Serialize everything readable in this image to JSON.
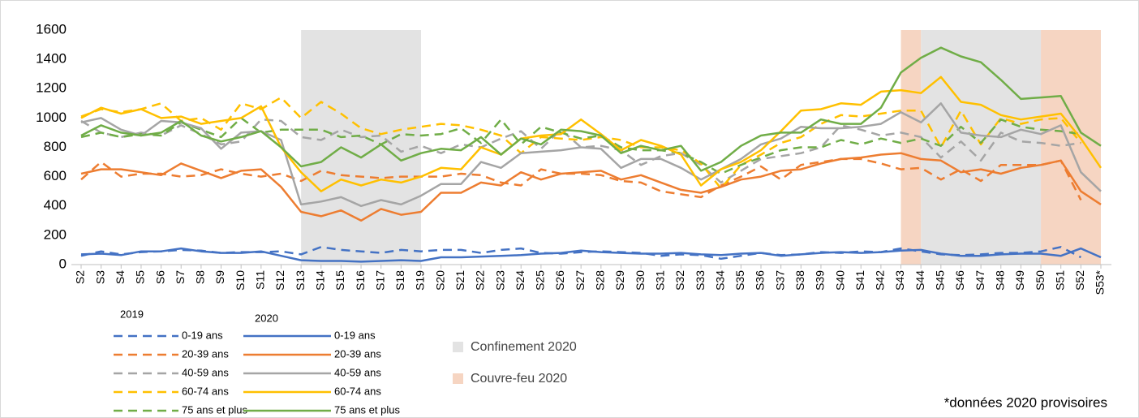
{
  "chart_data": {
    "type": "line",
    "categories": [
      "S2",
      "S3",
      "S4",
      "S5",
      "S6",
      "S7",
      "S8",
      "S9",
      "S10",
      "S11",
      "S12",
      "S13",
      "S14",
      "S15",
      "S16",
      "S17",
      "S18",
      "S19",
      "S20",
      "S21",
      "S22",
      "S23",
      "S24",
      "S25",
      "S26",
      "S27",
      "S28",
      "S29",
      "S30",
      "S31",
      "S32",
      "S33",
      "S34",
      "S35",
      "S36",
      "S37",
      "S38",
      "S39",
      "S40",
      "S41",
      "S42",
      "S43",
      "S44",
      "S45",
      "S46",
      "S47",
      "S48",
      "S49",
      "S50",
      "S51",
      "S52",
      "S53*"
    ],
    "ylim": [
      0,
      1600
    ],
    "yticks": [
      0,
      200,
      400,
      600,
      800,
      1000,
      1200,
      1400,
      1600
    ],
    "groups": [
      {
        "title": "2019",
        "dashed": true,
        "series": [
          {
            "name": "0-19 ans",
            "color": "#4472c4",
            "values": [
              60,
              90,
              70,
              85,
              90,
              100,
              95,
              80,
              85,
              85,
              90,
              70,
              120,
              100,
              90,
              80,
              100,
              90,
              100,
              100,
              80,
              100,
              110,
              80,
              75,
              85,
              90,
              85,
              80,
              60,
              70,
              65,
              40,
              60,
              80,
              65,
              70,
              85,
              80,
              90,
              85,
              110,
              90,
              70,
              65,
              70,
              80,
              80,
              90,
              120,
              50,
              null
            ]
          },
          {
            "name": "20-39 ans",
            "color": "#ed7d31",
            "values": [
              580,
              700,
              600,
              620,
              620,
              600,
              610,
              650,
              620,
              600,
              620,
              570,
              640,
              610,
              600,
              590,
              600,
              600,
              600,
              620,
              610,
              560,
              540,
              650,
              620,
              620,
              610,
              570,
              560,
              500,
              480,
              460,
              540,
              600,
              670,
              580,
              680,
              700,
              720,
              720,
              690,
              650,
              660,
              580,
              650,
              570,
              680,
              680,
              680,
              710,
              440,
              null
            ]
          },
          {
            "name": "40-59 ans",
            "color": "#a5a5a5",
            "values": [
              980,
              900,
              870,
              900,
              880,
              950,
              890,
              820,
              840,
              990,
              980,
              870,
              850,
              920,
              870,
              880,
              770,
              810,
              760,
              820,
              800,
              860,
              910,
              790,
              920,
              800,
              810,
              780,
              680,
              740,
              760,
              680,
              560,
              640,
              720,
              740,
              760,
              800,
              950,
              920,
              880,
              900,
              870,
              730,
              840,
              710,
              900,
              840,
              830,
              810,
              830,
              null
            ]
          },
          {
            "name": "60-74 ans",
            "color": "#ffc000",
            "values": [
              1010,
              1060,
              1040,
              1060,
              1100,
              980,
              1000,
              920,
              1100,
              1060,
              1140,
              1000,
              1110,
              1030,
              930,
              890,
              920,
              940,
              960,
              950,
              920,
              880,
              760,
              870,
              860,
              850,
              870,
              850,
              800,
              800,
              780,
              690,
              520,
              680,
              750,
              830,
              870,
              960,
              1020,
              1010,
              1030,
              1050,
              1050,
              800,
              1050,
              820,
              1000,
              960,
              990,
              1000,
              830,
              null
            ]
          },
          {
            "name": "75 ans et plus",
            "color": "#70ad47",
            "values": [
              870,
              900,
              870,
              890,
              880,
              970,
              920,
              870,
              1000,
              900,
              920,
              920,
              920,
              870,
              880,
              820,
              890,
              880,
              890,
              930,
              830,
              990,
              820,
              940,
              900,
              860,
              880,
              800,
              780,
              780,
              760,
              700,
              620,
              680,
              730,
              780,
              800,
              800,
              850,
              820,
              860,
              830,
              860,
              810,
              940,
              830,
              990,
              940,
              920,
              910,
              890,
              null
            ]
          }
        ]
      },
      {
        "title": "2020",
        "dashed": false,
        "series": [
          {
            "name": "0-19 ans",
            "color": "#4472c4",
            "values": [
              70,
              75,
              65,
              90,
              90,
              110,
              90,
              80,
              80,
              90,
              60,
              30,
              25,
              25,
              20,
              25,
              30,
              25,
              50,
              50,
              55,
              60,
              65,
              75,
              80,
              95,
              85,
              80,
              75,
              75,
              80,
              70,
              65,
              75,
              80,
              60,
              70,
              80,
              85,
              80,
              85,
              95,
              100,
              75,
              60,
              60,
              70,
              75,
              75,
              60,
              110,
              50
            ]
          },
          {
            "name": "20-39 ans",
            "color": "#ed7d31",
            "values": [
              620,
              650,
              650,
              630,
              610,
              690,
              640,
              590,
              640,
              650,
              530,
              360,
              330,
              370,
              300,
              380,
              340,
              360,
              490,
              490,
              560,
              540,
              630,
              580,
              620,
              630,
              640,
              580,
              610,
              560,
              510,
              490,
              530,
              580,
              600,
              640,
              650,
              690,
              720,
              730,
              750,
              760,
              720,
              710,
              630,
              650,
              620,
              660,
              680,
              710,
              500,
              410
            ]
          },
          {
            "name": "40-59 ans",
            "color": "#a5a5a5",
            "values": [
              970,
              1000,
              920,
              880,
              980,
              970,
              930,
              790,
              900,
              910,
              850,
              410,
              430,
              460,
              400,
              440,
              410,
              470,
              550,
              550,
              700,
              660,
              760,
              770,
              780,
              800,
              790,
              660,
              720,
              720,
              660,
              580,
              650,
              720,
              820,
              860,
              940,
              930,
              930,
              940,
              960,
              1040,
              970,
              1100,
              900,
              880,
              870,
              920,
              890,
              950,
              630,
              500
            ]
          },
          {
            "name": "60-74 ans",
            "color": "#ffc000",
            "values": [
              1000,
              1070,
              1030,
              1060,
              1000,
              1010,
              960,
              980,
              1000,
              1080,
              800,
              630,
              500,
              580,
              540,
              580,
              560,
              600,
              660,
              650,
              800,
              750,
              860,
              880,
              890,
              990,
              890,
              780,
              850,
              810,
              750,
              540,
              650,
              700,
              780,
              910,
              1050,
              1060,
              1100,
              1090,
              1180,
              1190,
              1170,
              1280,
              1110,
              1090,
              1020,
              990,
              1010,
              1030,
              860,
              660
            ]
          },
          {
            "name": "75 ans et plus",
            "color": "#70ad47",
            "values": [
              880,
              950,
              900,
              880,
              900,
              980,
              880,
              840,
              870,
              910,
              800,
              670,
              700,
              800,
              730,
              820,
              710,
              760,
              790,
              780,
              870,
              750,
              860,
              820,
              920,
              910,
              880,
              760,
              810,
              780,
              810,
              640,
              700,
              810,
              880,
              900,
              900,
              990,
              960,
              960,
              1070,
              1310,
              1410,
              1480,
              1420,
              1380,
              1260,
              1130,
              1140,
              1150,
              900,
              810
            ]
          }
        ]
      }
    ],
    "regions": [
      {
        "name": "Confinement 2020",
        "color": "#e3e3e3",
        "spans": [
          [
            "S13",
            "S19"
          ],
          [
            "S44",
            "S50"
          ]
        ]
      },
      {
        "name": "Couvre-feu 2020",
        "color": "#f6d5c2",
        "spans": [
          [
            "S43",
            "S44"
          ],
          [
            "S50",
            "S53*"
          ]
        ]
      }
    ],
    "footnote": "*données 2020 provisoires"
  }
}
